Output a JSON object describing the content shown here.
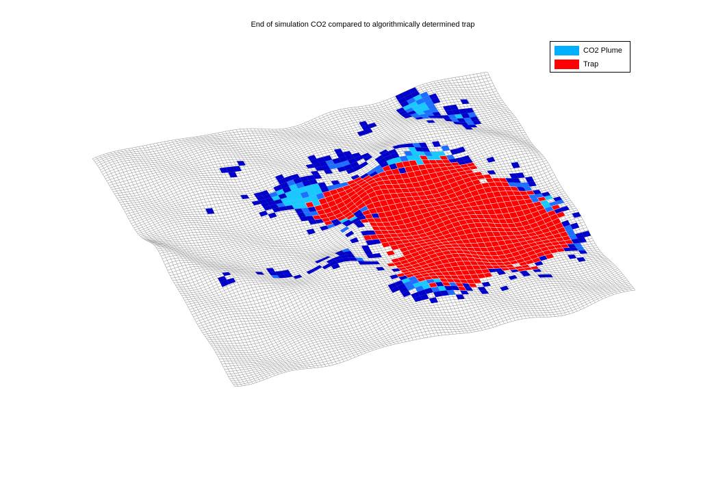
{
  "chart_data": {
    "type": "surface",
    "title": "End of simulation CO2 compared to algorithmically determined trap",
    "grid": false,
    "axes_visible": false,
    "mesh_color": "#7a7a7a",
    "legend": {
      "placement": "top-right",
      "entries": [
        {
          "name": "CO2 Plume",
          "color": "#00b0ff"
        },
        {
          "name": "Trap",
          "color": "#ff0000"
        }
      ]
    },
    "plume_colors": {
      "deep": "#0000c8",
      "mid": "#1e6eff",
      "light": "#19c8ff"
    },
    "trap_color": "#ff0000"
  }
}
